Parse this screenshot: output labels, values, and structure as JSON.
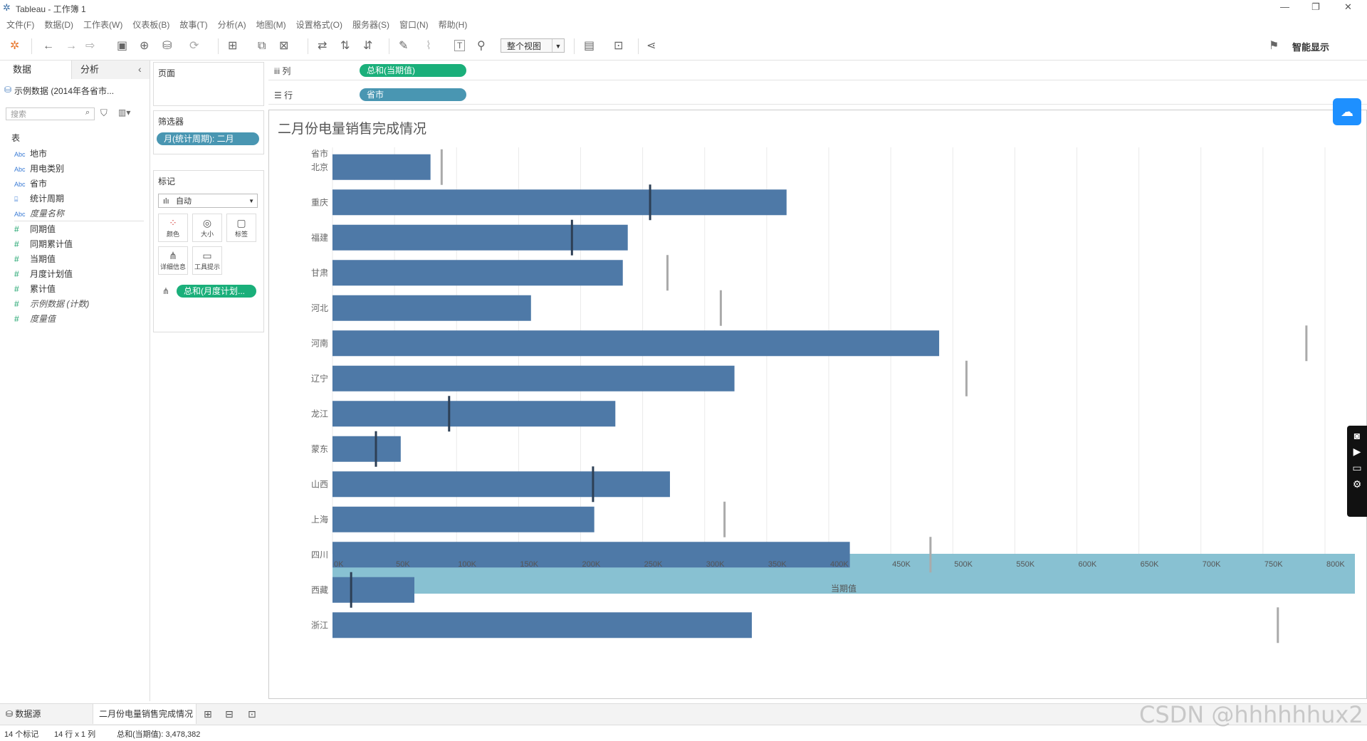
{
  "window": {
    "title": "Tableau - 工作簿 1",
    "controls": [
      "—",
      "❐",
      "✕"
    ]
  },
  "menu": [
    "文件(F)",
    "数据(D)",
    "工作表(W)",
    "仪表板(B)",
    "故事(T)",
    "分析(A)",
    "地图(M)",
    "设置格式(O)",
    "服务器(S)",
    "窗口(N)",
    "帮助(H)"
  ],
  "toolbar": {
    "view_mode": "整个视图",
    "smart_show": "智能显示"
  },
  "left_panel": {
    "tab_data": "数据",
    "tab_analysis": "分析",
    "datasource": "示例数据 (2014年各省市...",
    "search_placeholder": "搜索",
    "table_header": "表",
    "dimensions": [
      {
        "icon": "Abc",
        "label": "地市"
      },
      {
        "icon": "Abc",
        "label": "用电类别"
      },
      {
        "icon": "Abc",
        "label": "省市"
      },
      {
        "icon": "⌸",
        "label": "统计周期"
      },
      {
        "icon": "Abc",
        "label": "度量名称"
      }
    ],
    "measures": [
      {
        "icon": "#",
        "label": "同期值"
      },
      {
        "icon": "#",
        "label": "同期累计值"
      },
      {
        "icon": "#",
        "label": "当期值"
      },
      {
        "icon": "#",
        "label": "月度计划值"
      },
      {
        "icon": "#",
        "label": "累计值"
      },
      {
        "icon": "#",
        "label": "示例数据 (计数)"
      },
      {
        "icon": "#",
        "label": "度量值"
      }
    ]
  },
  "cards": {
    "pages": "页面",
    "filters": "筛选器",
    "filter_pill": "月(统计周期): 二月",
    "marks": "标记",
    "mark_type": "自动",
    "mark_buttons": [
      "颜色",
      "大小",
      "标签",
      "详细信息",
      "工具提示"
    ],
    "detail_pill": "总和(月度计划..."
  },
  "shelves": {
    "columns_label": "列",
    "columns_pill": "总和(当期值)",
    "rows_label": "行",
    "rows_pill": "省市"
  },
  "chart_data": {
    "type": "bar",
    "title": "二月份电量销售完成情况",
    "row_header": "省市",
    "xlabel": "当期值",
    "categories": [
      "北京",
      "重庆",
      "福建",
      "甘肃",
      "河北",
      "河南",
      "辽宁",
      "龙江",
      "蒙东",
      "山西",
      "上海",
      "四川",
      "西藏",
      "浙江"
    ],
    "series": [
      {
        "values": [
          79000,
          366000,
          238000,
          234000,
          160000,
          489000,
          324000,
          228000,
          55000,
          272000,
          211000,
          417000,
          66000,
          338000
        ]
      },
      {
        "type": "reference-line",
        "values": [
          88000,
          256000,
          193000,
          270000,
          313000,
          785000,
          511000,
          94000,
          35000,
          210000,
          316000,
          482000,
          15000,
          762000
        ]
      }
    ],
    "xlim": [
      0,
      825000
    ],
    "x_ticks": [
      "0K",
      "50K",
      "100K",
      "150K",
      "200K",
      "250K",
      "300K",
      "350K",
      "400K",
      "450K",
      "500K",
      "550K",
      "600K",
      "650K",
      "700K",
      "750K",
      "800K"
    ],
    "colors": {
      "bar": "#4e79a7",
      "axis_band": "#88c1d2",
      "ref_dark": "#2d3f55",
      "ref_light": "#aaaaaa"
    }
  },
  "sheets": {
    "datasource": "数据源",
    "active": "二月份电量销售完成情况"
  },
  "status": {
    "marks": "14 个标记",
    "dims": "14 行 x 1 列",
    "sum": "总和(当期值): 3,478,382"
  },
  "watermark": "CSDN @hhhhhhux2"
}
